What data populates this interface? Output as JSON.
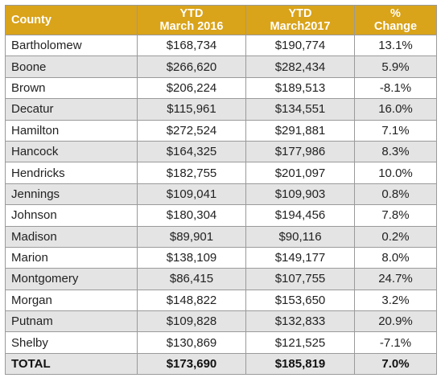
{
  "table": {
    "header_color": "#d9a31a",
    "stripe_color": "#e4e4e4",
    "columns": [
      {
        "line1": "County",
        "line2": ""
      },
      {
        "line1": "YTD",
        "line2": "March 2016"
      },
      {
        "line1": "YTD",
        "line2": "March2017"
      },
      {
        "line1": "%",
        "line2": "Change"
      }
    ],
    "rows": [
      {
        "county": "Bartholomew",
        "ytd_2016": "$168,734",
        "ytd_2017": "$190,774",
        "change": "13.1%"
      },
      {
        "county": "Boone",
        "ytd_2016": "$266,620",
        "ytd_2017": "$282,434",
        "change": "5.9%"
      },
      {
        "county": "Brown",
        "ytd_2016": "$206,224",
        "ytd_2017": "$189,513",
        "change": "-8.1%"
      },
      {
        "county": "Decatur",
        "ytd_2016": "$115,961",
        "ytd_2017": "$134,551",
        "change": "16.0%"
      },
      {
        "county": "Hamilton",
        "ytd_2016": "$272,524",
        "ytd_2017": "$291,881",
        "change": "7.1%"
      },
      {
        "county": "Hancock",
        "ytd_2016": "$164,325",
        "ytd_2017": "$177,986",
        "change": "8.3%"
      },
      {
        "county": "Hendricks",
        "ytd_2016": "$182,755",
        "ytd_2017": "$201,097",
        "change": "10.0%"
      },
      {
        "county": "Jennings",
        "ytd_2016": "$109,041",
        "ytd_2017": "$109,903",
        "change": "0.8%"
      },
      {
        "county": "Johnson",
        "ytd_2016": "$180,304",
        "ytd_2017": "$194,456",
        "change": "7.8%"
      },
      {
        "county": "Madison",
        "ytd_2016": "$89,901",
        "ytd_2017": "$90,116",
        "change": "0.2%"
      },
      {
        "county": "Marion",
        "ytd_2016": "$138,109",
        "ytd_2017": "$149,177",
        "change": "8.0%"
      },
      {
        "county": "Montgomery",
        "ytd_2016": "$86,415",
        "ytd_2017": "$107,755",
        "change": "24.7%"
      },
      {
        "county": "Morgan",
        "ytd_2016": "$148,822",
        "ytd_2017": "$153,650",
        "change": "3.2%"
      },
      {
        "county": "Putnam",
        "ytd_2016": "$109,828",
        "ytd_2017": "$132,833",
        "change": "20.9%"
      },
      {
        "county": "Shelby",
        "ytd_2016": "$130,869",
        "ytd_2017": "$121,525",
        "change": "-7.1%"
      }
    ],
    "total": {
      "county": "TOTAL",
      "ytd_2016": "$173,690",
      "ytd_2017": "$185,819",
      "change": "7.0%"
    }
  }
}
